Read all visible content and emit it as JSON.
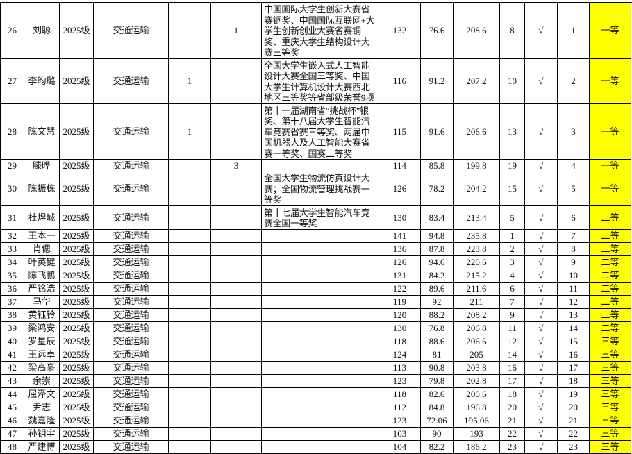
{
  "rows": [
    {
      "no": "26",
      "name": "刘聪",
      "grade": "2025级",
      "major": "交通运输",
      "c5": "",
      "c6": "1",
      "awards": "中国国际大学生创新大赛省赛铜奖、中国国际互联网+大学生创新创业大赛省赛铜奖、重庆大学生结构设计大赛三等奖",
      "s1": "132",
      "s2": "76.6",
      "total": "208.6",
      "r1": "8",
      "check": "√",
      "r2": "1",
      "level": "一等"
    },
    {
      "no": "27",
      "name": "李昀璐",
      "grade": "2025级",
      "major": "交通运输",
      "c5": "1",
      "c6": "",
      "awards": "全国大学生嵌入式人工智能设计大赛全国三等奖、中国大学生计算机设计大赛西北地区三等奖等省部级荣誉9项",
      "s1": "116",
      "s2": "91.2",
      "total": "207.2",
      "r1": "10",
      "check": "√",
      "r2": "2",
      "level": "一等"
    },
    {
      "no": "28",
      "name": "陈文慧",
      "grade": "2025级",
      "major": "交通运输",
      "c5": "1",
      "c6": "",
      "awards": "第十一届湖南省“挑战杯”银奖、第十八届大学生智能汽车竞赛省赛三等奖、两届中国机器人及人工智能大赛省赛一等奖、国赛二等奖",
      "s1": "115",
      "s2": "91.6",
      "total": "206.6",
      "r1": "13",
      "check": "√",
      "r2": "3",
      "level": "一等"
    },
    {
      "no": "29",
      "name": "滕晔",
      "grade": "2025级",
      "major": "交通运输",
      "c5": "",
      "c6": "3",
      "awards": "",
      "s1": "114",
      "s2": "85.8",
      "total": "199.8",
      "r1": "19",
      "check": "√",
      "r2": "4",
      "level": "一等"
    },
    {
      "no": "30",
      "name": "陈振栋",
      "grade": "2025级",
      "major": "交通运输",
      "c5": "",
      "c6": "",
      "awards": "全国大学生物流仿真设计大赛；全国物流管理挑战赛一等奖",
      "s1": "126",
      "s2": "78.2",
      "total": "204.2",
      "r1": "15",
      "check": "√",
      "r2": "5",
      "level": "一等"
    },
    {
      "no": "31",
      "name": "杜煜城",
      "grade": "2025级",
      "major": "交通运输",
      "c5": "",
      "c6": "",
      "awards": "第十七届大学生智能汽车竞赛全国一等奖",
      "s1": "130",
      "s2": "83.4",
      "total": "213.4",
      "r1": "5",
      "check": "√",
      "r2": "6",
      "level": "二等"
    },
    {
      "no": "32",
      "name": "王本一",
      "grade": "2025级",
      "major": "交通运输",
      "c5": "",
      "c6": "",
      "awards": "",
      "s1": "141",
      "s2": "94.8",
      "total": "235.8",
      "r1": "1",
      "check": "√",
      "r2": "7",
      "level": "二等"
    },
    {
      "no": "33",
      "name": "肖偲",
      "grade": "2025级",
      "major": "交通运输",
      "c5": "",
      "c6": "",
      "awards": "",
      "s1": "136",
      "s2": "87.8",
      "total": "223.8",
      "r1": "2",
      "check": "√",
      "r2": "8",
      "level": "二等"
    },
    {
      "no": "34",
      "name": "叶英键",
      "grade": "2025级",
      "major": "交通运输",
      "c5": "",
      "c6": "",
      "awards": "",
      "s1": "126",
      "s2": "94.6",
      "total": "220.6",
      "r1": "3",
      "check": "√",
      "r2": "9",
      "level": "二等"
    },
    {
      "no": "35",
      "name": "陈飞鹏",
      "grade": "2025级",
      "major": "交通运输",
      "c5": "",
      "c6": "",
      "awards": "",
      "s1": "131",
      "s2": "84.2",
      "total": "215.2",
      "r1": "4",
      "check": "√",
      "r2": "10",
      "level": "二等"
    },
    {
      "no": "36",
      "name": "严铭浩",
      "grade": "2025级",
      "major": "交通运输",
      "c5": "",
      "c6": "",
      "awards": "",
      "s1": "122",
      "s2": "89.6",
      "total": "211.6",
      "r1": "6",
      "check": "√",
      "r2": "11",
      "level": "二等"
    },
    {
      "no": "37",
      "name": "马华",
      "grade": "2025级",
      "major": "交通运输",
      "c5": "",
      "c6": "",
      "awards": "",
      "s1": "119",
      "s2": "92",
      "total": "211",
      "r1": "7",
      "check": "√",
      "r2": "12",
      "level": "二等"
    },
    {
      "no": "38",
      "name": "黄钰铃",
      "grade": "2025级",
      "major": "交通运输",
      "c5": "",
      "c6": "",
      "awards": "",
      "s1": "120",
      "s2": "88.2",
      "total": "208.2",
      "r1": "9",
      "check": "√",
      "r2": "13",
      "level": "二等"
    },
    {
      "no": "39",
      "name": "梁鸿安",
      "grade": "2025级",
      "major": "交通运输",
      "c5": "",
      "c6": "",
      "awards": "",
      "s1": "130",
      "s2": "76.8",
      "total": "206.8",
      "r1": "11",
      "check": "√",
      "r2": "14",
      "level": "二等"
    },
    {
      "no": "40",
      "name": "罗星辰",
      "grade": "2025级",
      "major": "交通运输",
      "c5": "",
      "c6": "",
      "awards": "",
      "s1": "118",
      "s2": "88.6",
      "total": "206.6",
      "r1": "12",
      "check": "√",
      "r2": "15",
      "level": "三等"
    },
    {
      "no": "41",
      "name": "王远卓",
      "grade": "2025级",
      "major": "交通运输",
      "c5": "",
      "c6": "",
      "awards": "",
      "s1": "124",
      "s2": "81",
      "total": "205",
      "r1": "14",
      "check": "√",
      "r2": "16",
      "level": "三等"
    },
    {
      "no": "42",
      "name": "梁高豪",
      "grade": "2025级",
      "major": "交通运输",
      "c5": "",
      "c6": "",
      "awards": "",
      "s1": "113",
      "s2": "90.8",
      "total": "203.8",
      "r1": "16",
      "check": "√",
      "r2": "17",
      "level": "三等"
    },
    {
      "no": "43",
      "name": "余崇",
      "grade": "2025级",
      "major": "交通运输",
      "c5": "",
      "c6": "",
      "awards": "",
      "s1": "123",
      "s2": "79.8",
      "total": "202.8",
      "r1": "17",
      "check": "√",
      "r2": "18",
      "level": "三等"
    },
    {
      "no": "44",
      "name": "屈泽文",
      "grade": "2025级",
      "major": "交通运输",
      "c5": "",
      "c6": "",
      "awards": "",
      "s1": "118",
      "s2": "82.6",
      "total": "200.6",
      "r1": "18",
      "check": "√",
      "r2": "19",
      "level": "三等"
    },
    {
      "no": "45",
      "name": "尹志",
      "grade": "2025级",
      "major": "交通运输",
      "c5": "",
      "c6": "",
      "awards": "",
      "s1": "112",
      "s2": "84.8",
      "total": "196.8",
      "r1": "20",
      "check": "√",
      "r2": "20",
      "level": "三等"
    },
    {
      "no": "46",
      "name": "魏嘉隆",
      "grade": "2025级",
      "major": "交通运输",
      "c5": "",
      "c6": "",
      "awards": "",
      "s1": "123",
      "s2": "72.06",
      "total": "195.06",
      "r1": "21",
      "check": "√",
      "r2": "21",
      "level": "三等"
    },
    {
      "no": "47",
      "name": "孙钥宇",
      "grade": "2025级",
      "major": "交通运输",
      "c5": "",
      "c6": "",
      "awards": "",
      "s1": "103",
      "s2": "90",
      "total": "193",
      "r1": "22",
      "check": "√",
      "r2": "22",
      "level": "三等"
    },
    {
      "no": "48",
      "name": "严建博",
      "grade": "2025级",
      "major": "交通运输",
      "c5": "",
      "c6": "",
      "awards": "",
      "s1": "104",
      "s2": "82.2",
      "total": "186.2",
      "r1": "23",
      "check": "√",
      "r2": "23",
      "level": "三等"
    }
  ],
  "colors": {
    "level_fill": "#ffff00",
    "grid": "#000000"
  }
}
